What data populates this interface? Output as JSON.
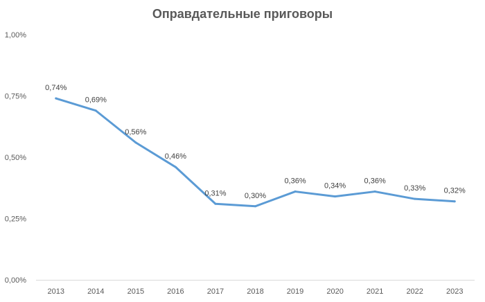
{
  "chart_data": {
    "type": "line",
    "title": "Оправдательные приговоры",
    "categories": [
      "2013",
      "2014",
      "2015",
      "2016",
      "2017",
      "2018",
      "2019",
      "2020",
      "2021",
      "2022",
      "2023"
    ],
    "series": [
      {
        "values": [
          0.74,
          0.69,
          0.56,
          0.46,
          0.31,
          0.3,
          0.36,
          0.34,
          0.36,
          0.33,
          0.32
        ],
        "labels": [
          "0,74%",
          "0,69%",
          "0,56%",
          "0,46%",
          "0,31%",
          "0,30%",
          "0,36%",
          "0,34%",
          "0,36%",
          "0,33%",
          "0,32%"
        ],
        "color": "#5B9BD5"
      }
    ],
    "ylim": [
      0,
      1.0
    ],
    "yticks": [
      0,
      0.25,
      0.5,
      0.75,
      1.0
    ],
    "ytick_labels": [
      "0,00%",
      "0,25%",
      "0,50%",
      "0,75%",
      "1,00%"
    ],
    "grid": false,
    "legend": "none"
  }
}
